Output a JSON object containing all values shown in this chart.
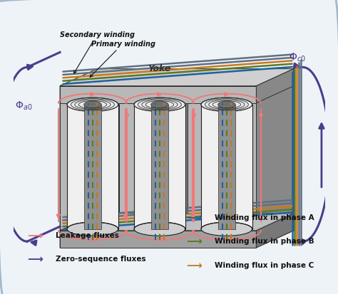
{
  "bg_color": "#eef3f8",
  "colors": {
    "leakage": "#f07878",
    "zero_seq": "#4a3d8b",
    "phase_a": "#2060a0",
    "phase_b": "#5a7a20",
    "phase_c": "#c87820"
  },
  "frame": {
    "yoke_face": "#b8b8b8",
    "yoke_side": "#888888",
    "yoke_top": "#d0d0d0",
    "yoke_inner_face": "#808080",
    "base_face": "#a0a0a0",
    "base_side": "#787878",
    "base_top": "#c0c0c0",
    "limb_face": "#888888",
    "limb_side": "#707070"
  },
  "winding": {
    "outer_face": "#e8e8e8",
    "outer_edge": "#202020",
    "inner_face": "#c0c0c0",
    "top_highlight": "#f5f5f5"
  },
  "legend": {
    "leakage_label": "Leakage fluxes",
    "zero_label": "Zero-sequence fluxes",
    "phase_a_label": "Winding flux in phase A",
    "phase_b_label": "Winding flux in phase B",
    "phase_c_label": "Winding flux in phase C"
  },
  "annotations": {
    "secondary": "Secondary winding",
    "primary": "Primary winding",
    "yoke": "Yoke",
    "phi_a0": "$\\Phi_{a0}$",
    "phi_c0": "$\\Phi_{c0}$"
  }
}
